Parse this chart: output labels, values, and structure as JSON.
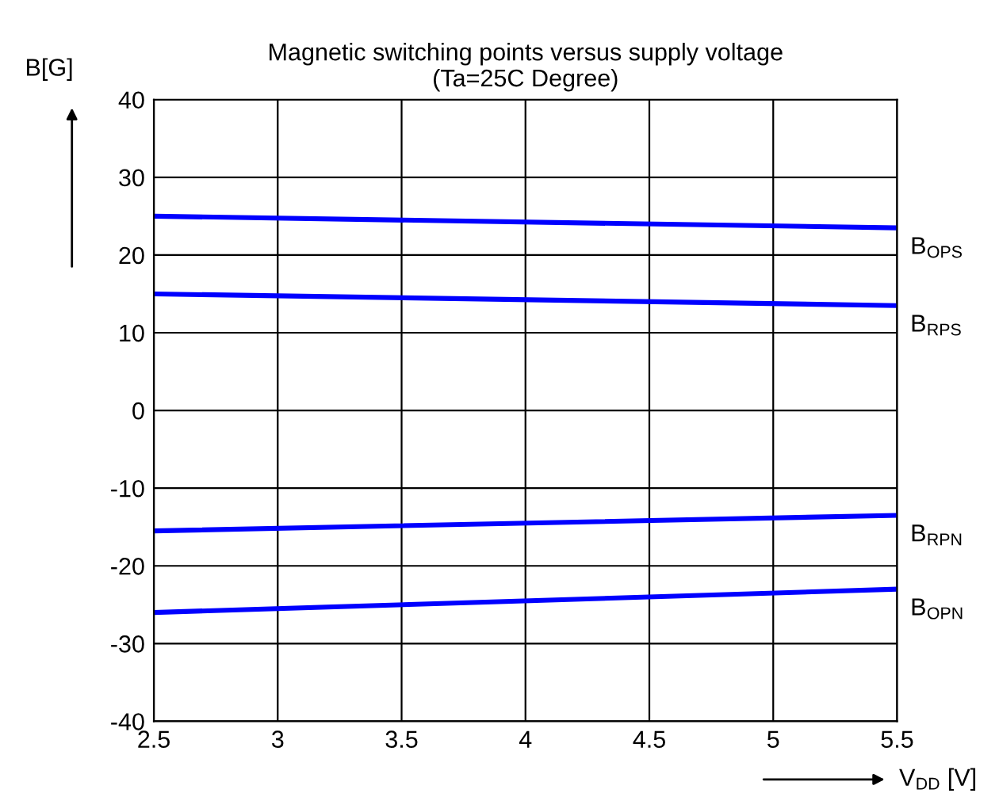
{
  "chart_data": {
    "type": "line",
    "title": "Magnetic switching points versus supply voltage\n(Ta=25C Degree)",
    "xlabel": "V$_{DD}$ [V]",
    "ylabel": "B[G]",
    "x": [
      2.5,
      5.5
    ],
    "series": [
      {
        "name": "B$_{OPS}$",
        "color": "#0000ff",
        "values": [
          25,
          23.5
        ]
      },
      {
        "name": "B$_{RPS}$",
        "color": "#0000ff",
        "values": [
          15,
          13.5
        ]
      },
      {
        "name": "B$_{RPN}$",
        "color": "#0000ff",
        "values": [
          -15.5,
          -13.5
        ]
      },
      {
        "name": "B$_{OPN}$",
        "color": "#0000ff",
        "values": [
          -26,
          -23
        ]
      }
    ],
    "xlim": [
      2.5,
      5.5
    ],
    "xticks": [
      2.5,
      3,
      3.5,
      4,
      4.5,
      5,
      5.5
    ],
    "ylim": [
      -40,
      40
    ],
    "yticks": [
      -40,
      -30,
      -20,
      -10,
      0,
      10,
      20,
      30,
      40
    ],
    "grid": true,
    "legend": false,
    "marker": "none",
    "line_style": "solid"
  }
}
